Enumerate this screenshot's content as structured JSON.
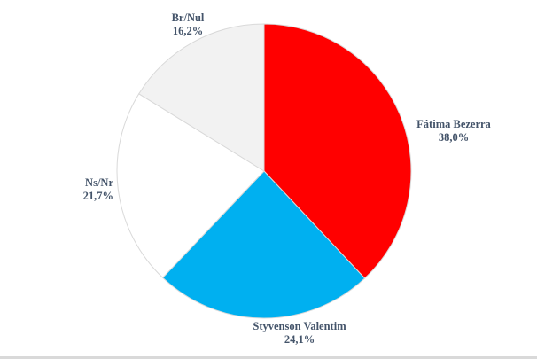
{
  "chart_data": {
    "type": "pie",
    "title": "",
    "slices": [
      {
        "name": "Fátima Bezerra",
        "value": 38.0,
        "value_label": "38,0%",
        "color": "#ff0000"
      },
      {
        "name": "Styvenson Valentim",
        "value": 24.1,
        "value_label": "24,1%",
        "color": "#00b0f0"
      },
      {
        "name": "Ns/Nr",
        "value": 21.7,
        "value_label": "21,7%",
        "color": "#ffffff"
      },
      {
        "name": "Br/Nul",
        "value": 16.2,
        "value_label": "16,2%",
        "color": "#f2f2f2"
      }
    ],
    "start": "12 o'clock",
    "direction": "clockwise",
    "label_color": "#44546a",
    "slice_border_color": "#d9d9d9",
    "legend": "none"
  }
}
